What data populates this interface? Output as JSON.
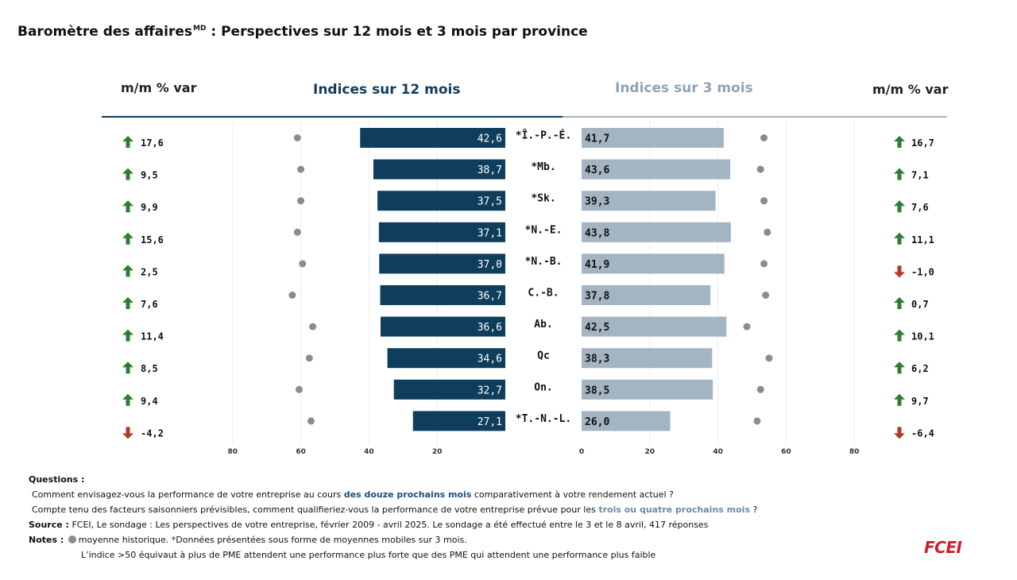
{
  "title": {
    "main": "Baromètre des affaires",
    "sup": "MD",
    "rest": " : Perspectives sur 12 mois et 3 mois par province"
  },
  "headers": {
    "left_var": "m/m % var",
    "indices_12": "Indices sur 12 mois",
    "indices_3": "Indices sur 3 mois",
    "right_var": "m/m % var"
  },
  "colors": {
    "bar_12": "#0f3d5c",
    "bar_3": "#a3b4c2",
    "dot": "#8c8c8c",
    "up_arrow": "#2f7d32",
    "down_arrow": "#b23a26",
    "logo": "#d0202a"
  },
  "chart_data": {
    "type": "bar",
    "categories": [
      "*Î.-P.-É.",
      "*Mb.",
      "*Sk.",
      "*N.-E.",
      "*N.-B.",
      "C.-B.",
      "Ab.",
      "Qc",
      "On.",
      "*T.-N.-L."
    ],
    "series": [
      {
        "name": "Indices sur 12 mois",
        "values": [
          42.6,
          38.7,
          37.5,
          37.1,
          37.0,
          36.7,
          36.6,
          34.6,
          32.7,
          27.1
        ],
        "labels": [
          "42,6",
          "38,7",
          "37,5",
          "37,1",
          "37,0",
          "36,7",
          "36,6",
          "34,6",
          "32,7",
          "27,1"
        ]
      },
      {
        "name": "Indices sur 3 mois",
        "values": [
          41.7,
          43.6,
          39.3,
          43.8,
          41.9,
          37.8,
          42.5,
          38.3,
          38.5,
          26.0
        ],
        "labels": [
          "41,7",
          "43,6",
          "39,3",
          "43,8",
          "41,9",
          "37,8",
          "42,5",
          "38,3",
          "38,5",
          "26,0"
        ]
      }
    ],
    "historical_average_12": [
      61,
      60,
      60,
      61,
      59.5,
      62.5,
      56.5,
      57.5,
      60.5,
      57
    ],
    "historical_average_3": [
      53.5,
      52.5,
      53.5,
      54.5,
      53.5,
      54,
      48.5,
      55,
      52.5,
      51.5
    ],
    "ticks_left": [
      "80",
      "60",
      "40",
      "20"
    ],
    "ticks_right": [
      "0",
      "20",
      "40",
      "60",
      "80"
    ],
    "axis_range": [
      0,
      80
    ],
    "change_12": [
      {
        "text": "17,6",
        "dir": "up"
      },
      {
        "text": "9,5",
        "dir": "up"
      },
      {
        "text": "9,9",
        "dir": "up"
      },
      {
        "text": "15,6",
        "dir": "up"
      },
      {
        "text": "2,5",
        "dir": "up"
      },
      {
        "text": "7,6",
        "dir": "up"
      },
      {
        "text": "11,4",
        "dir": "up"
      },
      {
        "text": "8,5",
        "dir": "up"
      },
      {
        "text": "9,4",
        "dir": "up"
      },
      {
        "text": "-4,2",
        "dir": "down"
      }
    ],
    "change_3": [
      {
        "text": "16,7",
        "dir": "up"
      },
      {
        "text": "7,1",
        "dir": "up"
      },
      {
        "text": "7,6",
        "dir": "up"
      },
      {
        "text": "11,1",
        "dir": "up"
      },
      {
        "text": "-1,0",
        "dir": "down"
      },
      {
        "text": "0,7",
        "dir": "up"
      },
      {
        "text": "10,1",
        "dir": "up"
      },
      {
        "text": "6,2",
        "dir": "up"
      },
      {
        "text": "9,7",
        "dir": "up"
      },
      {
        "text": "-6,4",
        "dir": "down"
      }
    ],
    "grid": true
  },
  "notes": {
    "questions_label": "Questions :",
    "q1_pre": "Comment envisagez-vous la performance de votre entreprise au cours ",
    "q1_hl": "des douze prochains mois",
    "q1_post": " comparativement à votre rendement actuel ?",
    "q2_pre": "Compte tenu des facteurs saisonniers prévisibles, comment qualifieriez-vous la performance  de votre entreprise prévue pour les ",
    "q2_hl": "trois ou quatre prochains mois",
    "q2_post": " ?",
    "source_label": "Source :",
    "source_text": " FCEI, Le sondage : Les perspectives de votre entreprise, février 2009 - avril 2025. Le sondage a été effectué entre le 3 et le 8 avril, 417 réponses",
    "notes_label": "Notes :",
    "notes_text1": "moyenne historique.  *Données présentées sous forme de moyennes mobiles sur 3 mois.",
    "notes_text2": "L’indice >50 équivaut à plus de PME attendent une performance plus forte que des PME qui attendent une performance plus faible"
  },
  "logo_text": "FCEI"
}
